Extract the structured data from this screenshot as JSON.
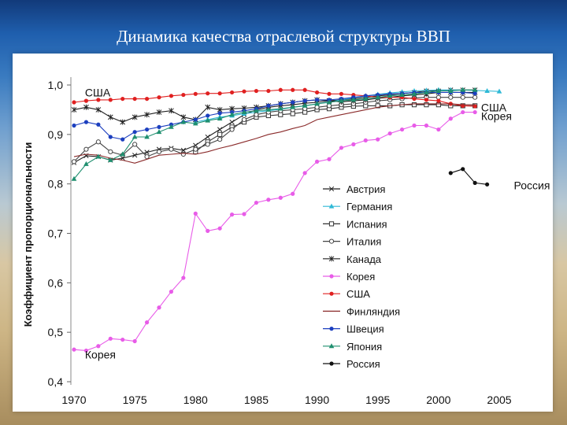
{
  "slide": {
    "title": "Динамика качества отраслевой структуры ВВП"
  },
  "chart_data": {
    "type": "line",
    "title": "",
    "xlabel": "",
    "ylabel": "Коэффициент пропорциональности",
    "xlim": [
      1970,
      2005
    ],
    "ylim": [
      0.4,
      1.0
    ],
    "x_ticks": [
      "1970",
      "1975",
      "1980",
      "1985",
      "1990",
      "1995",
      "2000",
      "2005"
    ],
    "y_ticks": [
      "0,4",
      "0,5",
      "0,6",
      "0,7",
      "0,8",
      "0,9",
      "1,0"
    ],
    "legend_position": "bottom-right",
    "annotations": [
      {
        "text": "США",
        "x": 1970.9,
        "y": 0.985
      },
      {
        "text": "США",
        "x": 2003.5,
        "y": 0.955
      },
      {
        "text": "Корея",
        "x": 2003.5,
        "y": 0.937
      },
      {
        "text": "Корея",
        "x": 1970.9,
        "y": 0.455
      },
      {
        "text": "Россия",
        "x": 2006.2,
        "y": 0.797
      }
    ],
    "series": [
      {
        "name": "Австрия",
        "color": "#222222",
        "marker": "x",
        "x": [
          1970,
          1971,
          1972,
          1973,
          1974,
          1975,
          1976,
          1977,
          1978,
          1979,
          1980,
          1981,
          1982,
          1983,
          1984,
          1985,
          1986,
          1987,
          1988,
          1989,
          1990,
          1991,
          1992,
          1993,
          1994,
          1995,
          1996,
          1997,
          1998,
          1999,
          2000,
          2001,
          2002,
          2003
        ],
        "y": [
          0.843,
          0.857,
          0.855,
          0.848,
          0.852,
          0.858,
          0.864,
          0.87,
          0.872,
          0.868,
          0.878,
          0.895,
          0.91,
          0.925,
          0.94,
          0.95,
          0.955,
          0.958,
          0.96,
          0.963,
          0.965,
          0.968,
          0.97,
          0.972,
          0.975,
          0.978,
          0.98,
          0.983,
          0.985,
          0.988,
          0.988,
          0.99,
          0.99,
          0.99
        ]
      },
      {
        "name": "Германия",
        "color": "#2fb9d6",
        "marker": "triangle",
        "x": [
          1980,
          1981,
          1982,
          1983,
          1984,
          1985,
          1986,
          1987,
          1988,
          1989,
          1990,
          1991,
          1992,
          1993,
          1994,
          1995,
          1996,
          1997,
          1998,
          1999,
          2000,
          2001,
          2002,
          2003,
          2004,
          2005
        ],
        "y": [
          0.925,
          0.93,
          0.935,
          0.938,
          0.942,
          0.945,
          0.948,
          0.951,
          0.955,
          0.958,
          0.962,
          0.966,
          0.97,
          0.974,
          0.978,
          0.981,
          0.984,
          0.986,
          0.988,
          0.989,
          0.99,
          0.99,
          0.99,
          0.989,
          0.988,
          0.987
        ]
      },
      {
        "name": "Испания",
        "color": "#333333",
        "marker": "square-open",
        "x": [
          1980,
          1981,
          1982,
          1983,
          1984,
          1985,
          1986,
          1987,
          1988,
          1989,
          1990,
          1991,
          1992,
          1993,
          1994,
          1995,
          1996,
          1997,
          1998,
          1999,
          2000,
          2001,
          2002,
          2003
        ],
        "y": [
          0.865,
          0.885,
          0.9,
          0.915,
          0.925,
          0.935,
          0.938,
          0.94,
          0.942,
          0.945,
          0.95,
          0.952,
          0.955,
          0.957,
          0.958,
          0.958,
          0.958,
          0.96,
          0.96,
          0.96,
          0.96,
          0.958,
          0.958,
          0.958
        ]
      },
      {
        "name": "Италия",
        "color": "#444444",
        "marker": "circle-open",
        "x": [
          1970,
          1971,
          1972,
          1973,
          1974,
          1975,
          1976,
          1977,
          1978,
          1979,
          1980,
          1981,
          1982,
          1983,
          1984,
          1985,
          1986,
          1987,
          1988,
          1989,
          1990,
          1991,
          1992,
          1993,
          1994,
          1995,
          1996,
          1997,
          1998,
          1999,
          2000,
          2001,
          2002,
          2003
        ],
        "y": [
          0.845,
          0.87,
          0.885,
          0.865,
          0.858,
          0.88,
          0.855,
          0.865,
          0.87,
          0.86,
          0.87,
          0.88,
          0.89,
          0.91,
          0.93,
          0.94,
          0.945,
          0.948,
          0.95,
          0.952,
          0.955,
          0.958,
          0.96,
          0.962,
          0.965,
          0.968,
          0.97,
          0.972,
          0.974,
          0.975,
          0.975,
          0.975,
          0.975,
          0.975
        ]
      },
      {
        "name": "Канада",
        "color": "#222222",
        "marker": "star",
        "x": [
          1970,
          1971,
          1972,
          1973,
          1974,
          1975,
          1976,
          1977,
          1978,
          1979,
          1980,
          1981,
          1982,
          1983,
          1984,
          1985,
          1986,
          1987,
          1988,
          1989,
          1990,
          1991,
          1992,
          1993,
          1994,
          1995,
          1996,
          1997,
          1998,
          1999,
          2000,
          2001,
          2002,
          2003
        ],
        "y": [
          0.95,
          0.955,
          0.95,
          0.935,
          0.925,
          0.935,
          0.94,
          0.945,
          0.948,
          0.935,
          0.93,
          0.955,
          0.95,
          0.952,
          0.953,
          0.955,
          0.958,
          0.962,
          0.965,
          0.968,
          0.97,
          0.968,
          0.966,
          0.968,
          0.97,
          0.973,
          0.975,
          0.978,
          0.98,
          0.982,
          0.985,
          0.985,
          0.985,
          0.985
        ]
      },
      {
        "name": "Корея",
        "color": "#e85ce8",
        "marker": "circle",
        "x": [
          1970,
          1971,
          1972,
          1973,
          1974,
          1975,
          1976,
          1977,
          1978,
          1979,
          1980,
          1981,
          1982,
          1983,
          1984,
          1985,
          1986,
          1987,
          1988,
          1989,
          1990,
          1991,
          1992,
          1993,
          1994,
          1995,
          1996,
          1997,
          1998,
          1999,
          2000,
          2001,
          2002,
          2003
        ],
        "y": [
          0.465,
          0.463,
          0.472,
          0.487,
          0.485,
          0.482,
          0.52,
          0.55,
          0.582,
          0.61,
          0.74,
          0.705,
          0.71,
          0.738,
          0.739,
          0.762,
          0.768,
          0.772,
          0.78,
          0.822,
          0.845,
          0.85,
          0.873,
          0.88,
          0.888,
          0.89,
          0.902,
          0.91,
          0.918,
          0.918,
          0.91,
          0.932,
          0.945,
          0.945
        ]
      },
      {
        "name": "США",
        "color": "#e02020",
        "marker": "circle",
        "x": [
          1970,
          1971,
          1972,
          1973,
          1974,
          1975,
          1976,
          1977,
          1978,
          1979,
          1980,
          1981,
          1982,
          1983,
          1984,
          1985,
          1986,
          1987,
          1988,
          1989,
          1990,
          1991,
          1992,
          1993,
          1994,
          1995,
          1996,
          1997,
          1998,
          1999,
          2000,
          2001,
          2002,
          2003
        ],
        "y": [
          0.965,
          0.968,
          0.97,
          0.97,
          0.972,
          0.972,
          0.972,
          0.975,
          0.978,
          0.98,
          0.982,
          0.983,
          0.983,
          0.985,
          0.987,
          0.988,
          0.988,
          0.99,
          0.99,
          0.99,
          0.985,
          0.982,
          0.982,
          0.98,
          0.978,
          0.975,
          0.975,
          0.975,
          0.972,
          0.97,
          0.968,
          0.962,
          0.958,
          0.957
        ]
      },
      {
        "name": "Финляндия",
        "color": "#8a2a2a",
        "marker": "none",
        "x": [
          1970,
          1971,
          1972,
          1973,
          1974,
          1975,
          1976,
          1977,
          1978,
          1979,
          1980,
          1981,
          1982,
          1983,
          1984,
          1985,
          1986,
          1987,
          1988,
          1989,
          1990,
          1991,
          1992,
          1993,
          1994,
          1995,
          1996,
          1997,
          1998,
          1999,
          2000,
          2001,
          2002,
          2003
        ],
        "y": [
          0.855,
          0.86,
          0.858,
          0.852,
          0.848,
          0.842,
          0.85,
          0.858,
          0.86,
          0.862,
          0.86,
          0.865,
          0.872,
          0.878,
          0.885,
          0.892,
          0.9,
          0.905,
          0.912,
          0.918,
          0.93,
          0.935,
          0.94,
          0.945,
          0.95,
          0.955,
          0.958,
          0.96,
          0.962,
          0.962,
          0.962,
          0.962,
          0.96,
          0.96
        ]
      },
      {
        "name": "Швеция",
        "color": "#1c3fbf",
        "marker": "circle",
        "x": [
          1970,
          1971,
          1972,
          1973,
          1974,
          1975,
          1976,
          1977,
          1978,
          1979,
          1980,
          1981,
          1982,
          1983,
          1984,
          1985,
          1986,
          1987,
          1988,
          1989,
          1990,
          1991,
          1992,
          1993,
          1994,
          1995,
          1996,
          1997,
          1998,
          1999,
          2000,
          2001,
          2002,
          2003
        ],
        "y": [
          0.918,
          0.925,
          0.92,
          0.895,
          0.89,
          0.905,
          0.91,
          0.915,
          0.92,
          0.925,
          0.93,
          0.938,
          0.943,
          0.945,
          0.948,
          0.952,
          0.958,
          0.962,
          0.965,
          0.968,
          0.97,
          0.97,
          0.972,
          0.975,
          0.978,
          0.98,
          0.982,
          0.983,
          0.985,
          0.985,
          0.985,
          0.985,
          0.985,
          0.983
        ]
      },
      {
        "name": "Япония",
        "color": "#1f8f6f",
        "marker": "triangle",
        "x": [
          1970,
          1971,
          1972,
          1973,
          1974,
          1975,
          1976,
          1977,
          1978,
          1979,
          1980,
          1981,
          1982,
          1983,
          1984,
          1985,
          1986,
          1987,
          1988,
          1989,
          1990,
          1991,
          1992,
          1993,
          1994,
          1995,
          1996,
          1997,
          1998,
          1999,
          2000,
          2001,
          2002,
          2003
        ],
        "y": [
          0.81,
          0.84,
          0.855,
          0.848,
          0.86,
          0.895,
          0.895,
          0.905,
          0.915,
          0.925,
          0.922,
          0.928,
          0.932,
          0.94,
          0.945,
          0.948,
          0.95,
          0.952,
          0.955,
          0.958,
          0.962,
          0.965,
          0.968,
          0.97,
          0.972,
          0.975,
          0.978,
          0.98,
          0.982,
          0.985,
          0.988,
          0.988,
          0.99,
          0.99
        ]
      },
      {
        "name": "Россия",
        "color": "#111111",
        "marker": "circle",
        "x": [
          2001,
          2002,
          2003,
          2004
        ],
        "y": [
          0.822,
          0.83,
          0.802,
          0.799
        ]
      }
    ]
  }
}
